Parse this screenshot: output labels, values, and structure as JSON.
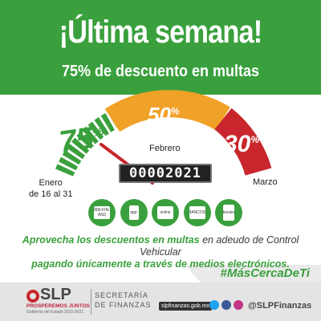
{
  "header": {
    "title": "¡Última semana!",
    "subtitle": "75% de descuento en multas"
  },
  "gauge": {
    "pct_enero": "75",
    "pct_febrero": "50",
    "pct_marzo": "30",
    "pct_symbol": "%",
    "label_febrero": "Febrero",
    "label_enero_1": "Enero",
    "label_enero_2": "de 16 al 31",
    "label_marzo": "Marzo",
    "odometer": "00002021",
    "needle_level": 0.18,
    "colors": {
      "green": "#3aa03d",
      "orange": "#f0a127",
      "red": "#c8262c"
    }
  },
  "payment_icons": [
    {
      "name": "oxxo-icon",
      "label": "800-FIN-ANZ"
    },
    {
      "name": "phone-icon",
      "label": "app"
    },
    {
      "name": "computer-icon",
      "label": "online"
    },
    {
      "name": "bank-icon",
      "label": "BANCOS"
    },
    {
      "name": "atm-icon",
      "label": "kiosko"
    }
  ],
  "body": {
    "line1_bold": "Aprovecha los descuentos en multas",
    "line1_rest": " en adeudo de Control Vehicular",
    "line2": "pagando únicamente a través de medios electrónicos."
  },
  "hashtag": "#MásCercaDeTi",
  "footer": {
    "logo_text": "SLP",
    "motto": "PROSPEREMOS JUNTOS",
    "motto2": "Gobierno del Estado 2015-2021",
    "secretaria_1": "SECRETARÍA",
    "secretaria_2": "DE FINANZAS",
    "url": "slpfinanzas.gob.mx",
    "handle": "@SLPFinanzas"
  }
}
